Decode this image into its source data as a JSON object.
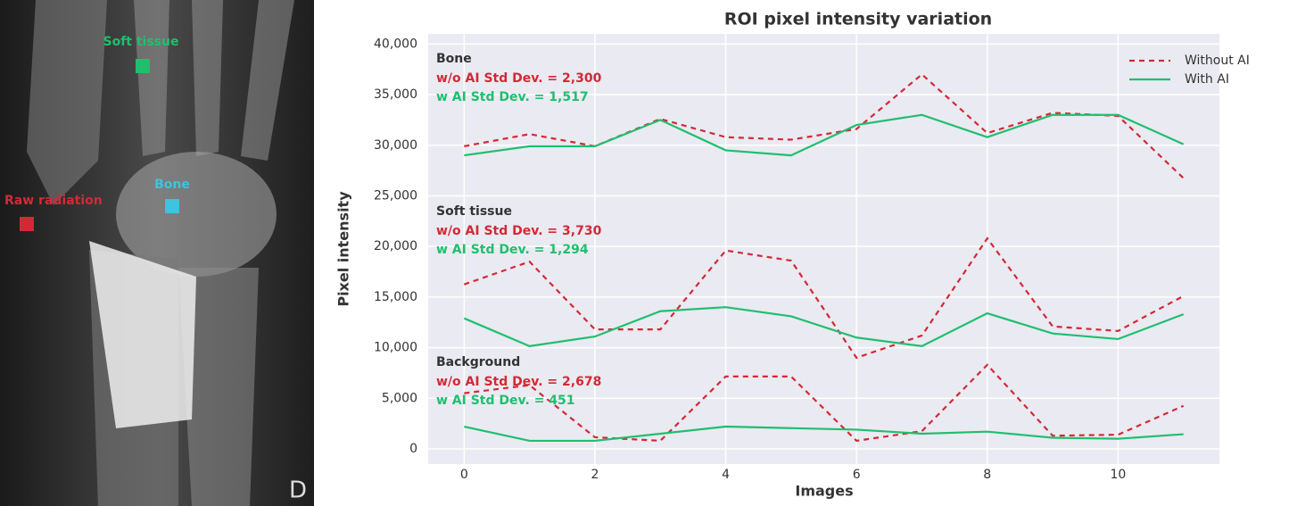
{
  "image": {
    "labels": [
      {
        "text": "Soft tissue",
        "color": "#1fbf6e"
      },
      {
        "text": "Bone",
        "color": "#3ec3e0"
      },
      {
        "text": "Raw radiation",
        "color": "#d22a35"
      }
    ]
  },
  "chart_data": {
    "type": "line",
    "title": "ROI pixel intensity variation",
    "x_label": "Images",
    "y_label": "Pixel intensity",
    "x": [
      0,
      1,
      2,
      3,
      4,
      5,
      6,
      7,
      8,
      9,
      10,
      11
    ],
    "xlim": [
      -0.55,
      11.55
    ],
    "xticks": [
      0,
      2,
      4,
      6,
      8,
      10
    ],
    "ylim": [
      -1500,
      41000
    ],
    "yticks": [
      0,
      {
        "value": 5000,
        "label": "5,000"
      },
      {
        "value": 10000,
        "label": "10,000"
      },
      {
        "value": 15000,
        "label": "15,000"
      },
      {
        "value": 20000,
        "label": "20,000"
      },
      {
        "value": 25000,
        "label": "25,000"
      },
      {
        "value": 30000,
        "label": "30,000"
      },
      {
        "value": 35000,
        "label": "35,000"
      },
      {
        "value": 40000,
        "label": "40,000"
      }
    ],
    "grid": true,
    "legend": "upper right",
    "series": [
      {
        "name": "Without AI",
        "color": "#d22a35",
        "dashed": true,
        "values": [
          29900,
          31100,
          29900,
          32600,
          30800,
          30550,
          31600,
          37000,
          31200,
          33200,
          32900,
          26750
        ]
      },
      {
        "name": "With AI",
        "color": "#1fbf6e",
        "dashed": false,
        "values": [
          29000,
          29900,
          29900,
          32500,
          29500,
          29000,
          32000,
          33000,
          30800,
          33000,
          33000,
          30100
        ]
      },
      {
        "name": "Without AI",
        "color": "#d22a35",
        "dashed": true,
        "values": [
          16250,
          18500,
          11800,
          11800,
          19600,
          18600,
          9000,
          11200,
          20800,
          12100,
          11650,
          15100
        ]
      },
      {
        "name": "With AI",
        "color": "#1fbf6e",
        "dashed": false,
        "values": [
          12900,
          10150,
          11100,
          13600,
          14000,
          13100,
          11000,
          10150,
          13400,
          11400,
          10850,
          13300
        ]
      },
      {
        "name": "Without AI",
        "color": "#d22a35",
        "dashed": true,
        "values": [
          5500,
          6300,
          1150,
          800,
          7150,
          7150,
          800,
          1750,
          8300,
          1300,
          1400,
          4250
        ]
      },
      {
        "name": "With AI",
        "color": "#1fbf6e",
        "dashed": false,
        "values": [
          2200,
          800,
          800,
          1500,
          2200,
          2050,
          1900,
          1500,
          1700,
          1100,
          1000,
          1450
        ]
      }
    ],
    "annotations": [
      {
        "group": "Bone",
        "without": "w/o AI Std Dev. = 2,300",
        "with": "w AI Std Dev. = 1,517"
      },
      {
        "group": "Soft tissue",
        "without": "w/o AI Std Dev. = 3,730",
        "with": "w AI Std Dev. = 1,294"
      },
      {
        "group": "Background",
        "without": "w/o AI Std Dev. = 2,678",
        "with": "w AI Std Dev. = 451"
      }
    ]
  }
}
